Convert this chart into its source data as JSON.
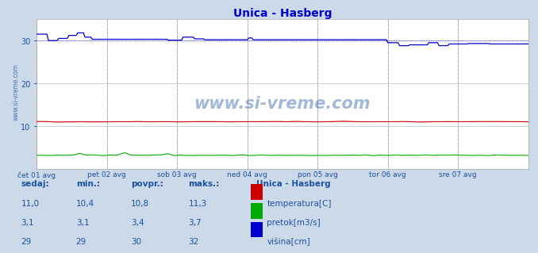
{
  "title": "Unica - Hasberg",
  "title_color": "#0000cc",
  "bg_color": "#ccd9e8",
  "plot_bg_color": "#ffffff",
  "grid_color": "#bbbbcc",
  "x_ticks_labels": [
    "čet 01 avg",
    "pet 02 avg",
    "sob 03 avg",
    "ned 04 avg",
    "pon 05 avg",
    "tor 06 avg",
    "sre 07 avg"
  ],
  "x_ticks_positions": [
    0,
    48,
    96,
    144,
    192,
    240,
    288
  ],
  "n_points": 337,
  "ylim": [
    0,
    35
  ],
  "yticks": [
    10,
    20,
    30
  ],
  "temp_color": "#cc0000",
  "flow_color": "#00aa00",
  "height_color": "#0000cc",
  "vline_color": "#ff44ff",
  "dotted_color_temp": "#cc0000",
  "dotted_color_height": "#0000cc",
  "watermark": "www.si-vreme.com",
  "watermark_color": "#1a52a0",
  "sidebar_text": "www.si-vreme.com",
  "legend_title": "Unica - Hasberg",
  "legend_items": [
    "temperatura[C]",
    "pretok[m3/s]",
    "višina[cm]"
  ],
  "legend_colors": [
    "#cc0000",
    "#00aa00",
    "#0000cc"
  ],
  "table_headers": [
    "sedaj:",
    "min.:",
    "povpr.:",
    "maks.:"
  ],
  "table_values": [
    [
      11.0,
      10.4,
      10.8,
      11.3
    ],
    [
      3.1,
      3.1,
      3.4,
      3.7
    ],
    [
      29,
      29,
      30,
      32
    ]
  ],
  "table_color": "#1a52a0"
}
